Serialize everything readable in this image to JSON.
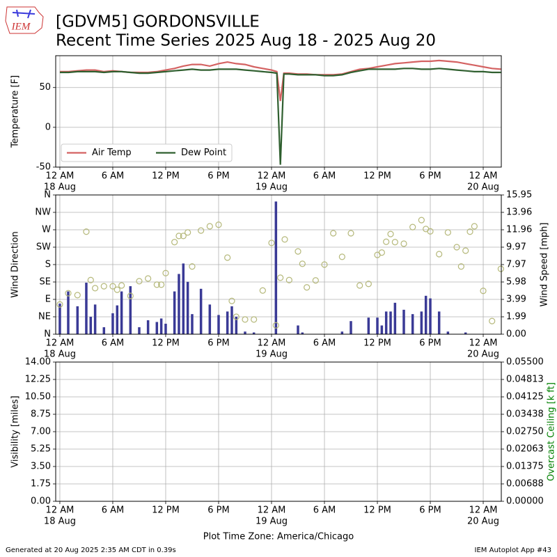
{
  "logo_text": "IEM",
  "footer": {
    "left": "Generated at 20 Aug 2025 2:35 AM CDT in 0.39s",
    "right": "IEM Autoplot App #43"
  },
  "chart_data": [
    {
      "type": "line",
      "title": "[GDVM5] GORDONSVILLE",
      "subtitle": "Recent Time Series 2025 Aug 18 - 2025 Aug 20",
      "ylabel": "Temperature [F]",
      "grid": true,
      "legend": "lower left",
      "xlim": [
        -0.47,
        50.05
      ],
      "xticks": [
        {
          "value": 0,
          "label": "12 AM",
          "date": "18 Aug"
        },
        {
          "value": 6,
          "label": "6 AM"
        },
        {
          "value": 12,
          "label": "12 PM"
        },
        {
          "value": 18,
          "label": "6 PM"
        },
        {
          "value": 24,
          "label": "12 AM",
          "date": "19 Aug"
        },
        {
          "value": 30,
          "label": "6 AM"
        },
        {
          "value": 36,
          "label": "12 PM"
        },
        {
          "value": 42,
          "label": "6 PM"
        },
        {
          "value": 48,
          "label": "12 AM",
          "date": "20 Aug"
        }
      ],
      "ylim": [
        -50,
        90
      ],
      "yticks": [
        -50,
        0,
        50
      ],
      "x": [
        0,
        1,
        2,
        3,
        4,
        5,
        6,
        7,
        8,
        9,
        10,
        11,
        12,
        13,
        14,
        15,
        16,
        17,
        18,
        19,
        20,
        21,
        22,
        23,
        24,
        24.6,
        25,
        25.4,
        26,
        27,
        28,
        29,
        30,
        31,
        32,
        33,
        34,
        35,
        36,
        37,
        38,
        39,
        40,
        41,
        42,
        43,
        44,
        45,
        46,
        47,
        48,
        49,
        50
      ],
      "series": [
        {
          "name": "Air Temp",
          "color": "#d46262",
          "values": [
            70,
            70,
            71,
            72,
            72,
            70,
            71,
            70,
            69,
            69,
            69,
            70,
            72,
            74,
            77,
            79,
            79,
            77,
            80,
            82,
            80,
            79,
            76,
            74,
            72,
            70,
            33,
            68,
            68,
            67,
            67,
            66,
            66,
            66,
            67,
            70,
            73,
            74,
            76,
            78,
            80,
            81,
            82,
            83,
            83,
            84,
            83,
            82,
            80,
            78,
            76,
            74,
            73
          ]
        },
        {
          "name": "Dew Point",
          "color": "#2f5f2f",
          "values": [
            69,
            69,
            70,
            70,
            70,
            69,
            70,
            70,
            69,
            68,
            68,
            69,
            70,
            71,
            72,
            73,
            72,
            72,
            73,
            73,
            73,
            72,
            71,
            70,
            69,
            68,
            -47,
            67,
            67,
            66,
            66,
            66,
            65,
            65,
            66,
            69,
            71,
            73,
            73,
            73,
            73,
            74,
            74,
            73,
            73,
            74,
            73,
            72,
            71,
            70,
            70,
            69,
            69
          ]
        }
      ]
    },
    {
      "type": "wind",
      "ylabel": "Wind Direction",
      "y2label": "Wind Speed [mph]",
      "grid": true,
      "xlim": [
        -0.47,
        50.05
      ],
      "xticks": [
        {
          "value": 0,
          "label": "12 AM",
          "date": "18 Aug"
        },
        {
          "value": 6,
          "label": "6 AM"
        },
        {
          "value": 12,
          "label": "12 PM"
        },
        {
          "value": 18,
          "label": "6 PM"
        },
        {
          "value": 24,
          "label": "12 AM",
          "date": "19 Aug"
        },
        {
          "value": 30,
          "label": "6 AM"
        },
        {
          "value": 36,
          "label": "12 PM"
        },
        {
          "value": 42,
          "label": "6 PM"
        },
        {
          "value": 48,
          "label": "12 AM",
          "date": "20 Aug"
        }
      ],
      "ylim": [
        0,
        360
      ],
      "yticks": [
        {
          "value": 0,
          "label": "N"
        },
        {
          "value": 45,
          "label": "NE"
        },
        {
          "value": 90,
          "label": "E"
        },
        {
          "value": 135,
          "label": "SE"
        },
        {
          "value": 180,
          "label": "S"
        },
        {
          "value": 225,
          "label": "SW"
        },
        {
          "value": 270,
          "label": "W"
        },
        {
          "value": 315,
          "label": "NW"
        },
        {
          "value": 360,
          "label": "N"
        }
      ],
      "y2lim": [
        0,
        15.95
      ],
      "y2ticks": [
        {
          "value": 0,
          "label": "0.00"
        },
        {
          "value": 1.99375,
          "label": "1.99"
        },
        {
          "value": 3.9875,
          "label": "3.99"
        },
        {
          "value": 5.98125,
          "label": "5.98"
        },
        {
          "value": 7.975,
          "label": "7.97"
        },
        {
          "value": 9.96875,
          "label": "9.97"
        },
        {
          "value": 11.9625,
          "label": "11.96"
        },
        {
          "value": 13.95625,
          "label": "13.96"
        },
        {
          "value": 15.95,
          "label": "15.95"
        }
      ],
      "series": [
        {
          "kind": "scatter",
          "color": "#b5b87a",
          "x": [
            0,
            0.95,
            2,
            3,
            3.5,
            4,
            5,
            6,
            6.5,
            7,
            8,
            9,
            10,
            11,
            11.5,
            12,
            13,
            13.5,
            14,
            14.5,
            15,
            16,
            17,
            18,
            19,
            19.5,
            20,
            21,
            22,
            23,
            24,
            24.5,
            25,
            25.5,
            26,
            27,
            27.5,
            28,
            29,
            30,
            31,
            32,
            33,
            34,
            35,
            36,
            36.5,
            37,
            37.5,
            38,
            39,
            40,
            41,
            41.5,
            42,
            43,
            44,
            45,
            45.5,
            46,
            46.5,
            47,
            48,
            49,
            50
          ],
          "values": [
            77,
            106,
            101,
            265,
            140,
            119,
            124,
            124,
            115,
            126,
            99,
            137,
            144,
            128,
            128,
            158,
            238,
            254,
            254,
            263,
            175,
            268,
            279,
            283,
            198,
            86,
            45,
            38,
            38,
            113,
            236,
            23,
            146,
            245,
            140,
            214,
            182,
            121,
            139,
            180,
            261,
            200,
            261,
            126,
            130,
            205,
            211,
            239,
            259,
            238,
            234,
            277,
            295,
            272,
            266,
            207,
            263,
            225,
            175,
            216,
            265,
            279,
            112,
            34,
            169
          ]
        },
        {
          "kind": "bar",
          "color": "#3a3a96",
          "axis": "y2",
          "x": [
            0,
            0.95,
            2,
            3,
            3.5,
            4,
            5,
            6,
            6.5,
            7,
            8,
            9,
            10,
            11,
            11.5,
            12,
            13,
            13.5,
            14,
            14.5,
            15,
            16,
            17,
            18,
            19,
            19.5,
            20,
            21,
            22,
            24.5,
            27,
            27.5,
            32,
            33,
            35,
            36,
            36.5,
            37,
            37.5,
            38,
            39,
            40,
            41,
            41.5,
            42,
            43,
            44,
            46
          ],
          "values": [
            3.5,
            4.9,
            3.2,
            5.9,
            2.0,
            3.4,
            0.8,
            2.4,
            3.3,
            4.9,
            5.5,
            0.8,
            1.6,
            1.4,
            1.8,
            1.2,
            4.9,
            6.9,
            8.1,
            6.0,
            2.3,
            5.2,
            3.4,
            2.2,
            2.6,
            3.2,
            2.0,
            0.3,
            0.2,
            15.2,
            1.0,
            0.2,
            0.3,
            1.5,
            1.9,
            1.9,
            1.0,
            2.6,
            2.6,
            3.6,
            2.8,
            2.3,
            2.6,
            4.4,
            4.1,
            2.6,
            0.3,
            0.2
          ]
        }
      ]
    },
    {
      "type": "visibility",
      "ylabel": "Visibility [miles]",
      "y2label": "Overcast Ceiling [k ft]",
      "y2color": "#008000",
      "xlabel": "Plot Time Zone: America/Chicago",
      "grid": true,
      "xlim": [
        -0.47,
        50.05
      ],
      "xticks": [
        {
          "value": 0,
          "label": "12 AM",
          "date": "18 Aug"
        },
        {
          "value": 6,
          "label": "6 AM"
        },
        {
          "value": 12,
          "label": "12 PM"
        },
        {
          "value": 18,
          "label": "6 PM"
        },
        {
          "value": 24,
          "label": "12 AM",
          "date": "19 Aug"
        },
        {
          "value": 30,
          "label": "6 AM"
        },
        {
          "value": 36,
          "label": "12 PM"
        },
        {
          "value": 42,
          "label": "6 PM"
        },
        {
          "value": 48,
          "label": "12 AM",
          "date": "20 Aug"
        }
      ],
      "ylim": [
        0,
        14
      ],
      "yticks": [
        {
          "value": 0,
          "label": "0.00"
        },
        1.75,
        {
          "value": 3.5,
          "label": "3.50"
        },
        5.25,
        {
          "value": 7,
          "label": "7.00"
        },
        8.75,
        {
          "value": 10.5,
          "label": "10.50"
        },
        12.25,
        {
          "value": 14,
          "label": "14.00"
        }
      ],
      "y2lim": [
        0,
        0.055
      ],
      "y2ticks": [
        {
          "value": 0,
          "label": "0.00000"
        },
        {
          "value": 0.006875,
          "label": "0.00688"
        },
        {
          "value": 0.01375,
          "label": "0.01375"
        },
        {
          "value": 0.020625,
          "label": "0.02063"
        },
        {
          "value": 0.0275,
          "label": "0.02750"
        },
        {
          "value": 0.034375,
          "label": "0.03438"
        },
        {
          "value": 0.04125,
          "label": "0.04125"
        },
        {
          "value": 0.048125,
          "label": "0.04813"
        },
        {
          "value": 0.055,
          "label": "0.05500"
        }
      ]
    }
  ]
}
